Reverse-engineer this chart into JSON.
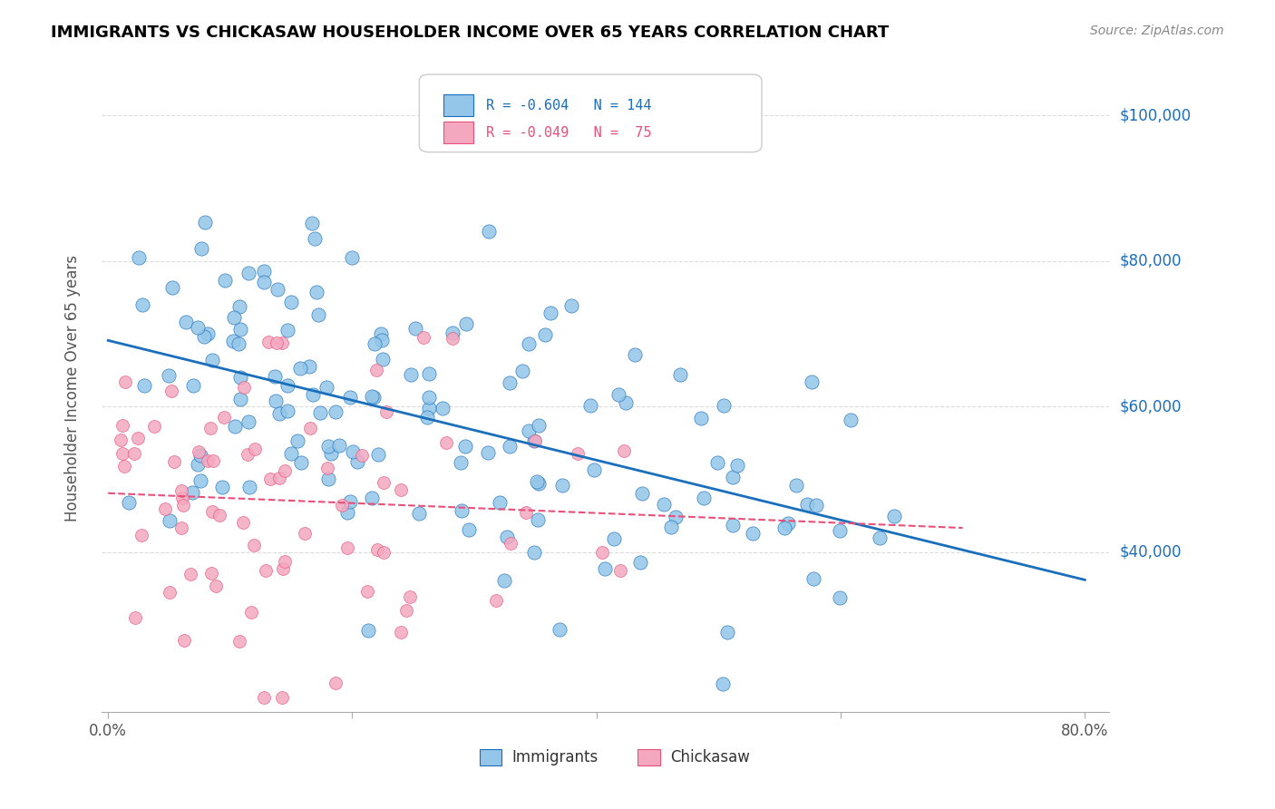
{
  "title": "IMMIGRANTS VS CHICKASAW HOUSEHOLDER INCOME OVER 65 YEARS CORRELATION CHART",
  "source": "Source: ZipAtlas.com",
  "ylabel": "Householder Income Over 65 years",
  "immigrants_color": "#93c6e8",
  "chickasaw_color": "#f4a8c0",
  "trendline_immigrants_color": "#1a6fbd",
  "trendline_chickasaw_color": "#e8507a",
  "legend_immigrants_r": "-0.604",
  "legend_immigrants_n": "144",
  "legend_chickasaw_r": "-0.049",
  "legend_chickasaw_n": " 75",
  "ytick_positions": [
    40000,
    60000,
    80000,
    100000
  ],
  "ytick_labels": [
    "$40,000",
    "$60,000",
    "$80,000",
    "$100,000"
  ]
}
